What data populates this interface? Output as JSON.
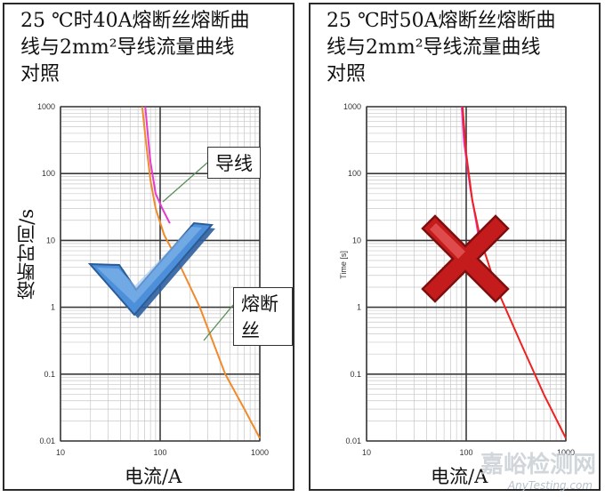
{
  "chart_data": [
    {
      "type": "line",
      "title": "25 ℃时40A熔断丝熔断曲线与2mm²导线流量曲线对照",
      "title_lines": [
        "25 ℃时40A熔断丝熔断曲",
        "线与2mm²导线流量曲线",
        "对照"
      ],
      "xlabel": "电流/A",
      "ylabel": "熔断时间/s",
      "xscale": "log",
      "yscale": "log",
      "xlim": [
        10,
        1000
      ],
      "ylim": [
        0.01,
        1000
      ],
      "x_ticks": [
        "10",
        "100",
        "1000"
      ],
      "y_ticks": [
        "1000",
        "100",
        "10",
        "1",
        "0.1",
        "0.01"
      ],
      "grid": true,
      "annotations": [
        {
          "text": "导线",
          "points_to": "wire"
        },
        {
          "text": "熔断丝",
          "points_to": "fuse"
        }
      ],
      "verdict_mark": "check",
      "series": [
        {
          "name": "wire",
          "color": "#e63ad0",
          "x": [
            71,
            75,
            80,
            90,
            105,
            125
          ],
          "y": [
            1000,
            400,
            150,
            50,
            30,
            18
          ]
        },
        {
          "name": "fuse",
          "color": "#f08a2a",
          "x": [
            66,
            72,
            80,
            90,
            110,
            150,
            250,
            450,
            700,
            1000
          ],
          "y": [
            1000,
            300,
            80,
            30,
            12,
            5,
            1,
            0.1,
            0.03,
            0.011
          ]
        }
      ]
    },
    {
      "type": "line",
      "title": "25 ℃时50A熔断丝熔断曲线与2mm²导线流量曲线对照",
      "title_lines": [
        "25 ℃时50A熔断丝熔断曲",
        "线与2mm²导线流量曲线",
        "对照"
      ],
      "xlabel": "电流/A",
      "ylabel": "Time [s]",
      "xscale": "log",
      "yscale": "log",
      "xlim": [
        10,
        1000
      ],
      "ylim": [
        0.01,
        1000
      ],
      "x_ticks": [
        "10",
        "100",
        "1000"
      ],
      "y_ticks": [
        "1000",
        "100",
        "10",
        "1",
        "0.1",
        "0.01"
      ],
      "grid": true,
      "verdict_mark": "cross",
      "series": [
        {
          "name": "wire",
          "color": "#e63ad0",
          "x": [
            90,
            95,
            110,
            125,
            135
          ],
          "y": [
            1000,
            300,
            60,
            20,
            10
          ]
        },
        {
          "name": "fuse",
          "color": "#ee2020",
          "x": [
            92,
            100,
            115,
            140,
            200,
            350,
            600,
            1000
          ],
          "y": [
            1000,
            200,
            40,
            10,
            2,
            0.3,
            0.05,
            0.011
          ]
        }
      ]
    }
  ],
  "watermark": {
    "text": "嘉峪检测网",
    "sub": "AnyTesting.com"
  }
}
